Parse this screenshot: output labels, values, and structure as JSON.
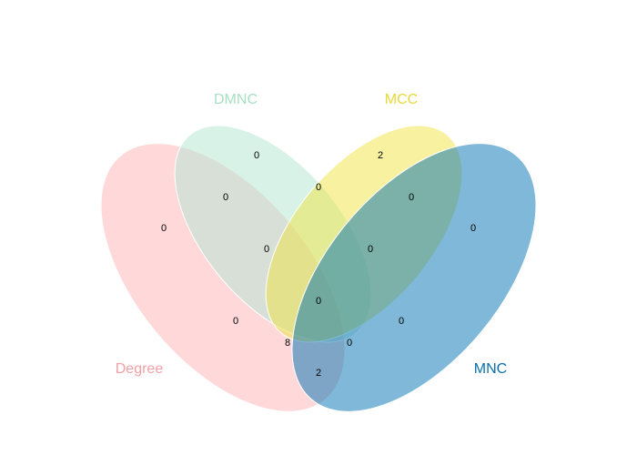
{
  "sets": [
    {
      "id": "degree",
      "label": "Degree",
      "fill": "#ffb3b5",
      "label_color": "#f4a0a6"
    },
    {
      "id": "dmnc",
      "label": "DMNC",
      "fill": "#b1e6d1",
      "label_color": "#a7dfc3"
    },
    {
      "id": "mcc",
      "label": "MCC",
      "fill": "#f0e442",
      "label_color": "#e8d839"
    },
    {
      "id": "mnc",
      "label": "MNC",
      "fill": "#0072b2",
      "label_color": "#0a6fad"
    }
  ],
  "regions": [
    {
      "sets": [
        "degree"
      ],
      "count": "0"
    },
    {
      "sets": [
        "dmnc"
      ],
      "count": "0"
    },
    {
      "sets": [
        "mcc"
      ],
      "count": "2"
    },
    {
      "sets": [
        "mnc"
      ],
      "count": "0"
    },
    {
      "sets": [
        "degree",
        "dmnc"
      ],
      "count": "0"
    },
    {
      "sets": [
        "dmnc",
        "mcc"
      ],
      "count": "0"
    },
    {
      "sets": [
        "mcc",
        "mnc"
      ],
      "count": "0"
    },
    {
      "sets": [
        "degree",
        "dmnc",
        "mcc"
      ],
      "count": "0"
    },
    {
      "sets": [
        "dmnc",
        "mcc",
        "mnc"
      ],
      "count": "0"
    },
    {
      "sets": [
        "degree",
        "dmnc",
        "mcc",
        "mnc"
      ],
      "count": "0"
    },
    {
      "sets": [
        "degree",
        "mcc"
      ],
      "count": "0"
    },
    {
      "sets": [
        "dmnc",
        "mnc"
      ],
      "count": "0"
    },
    {
      "sets": [
        "degree",
        "mcc",
        "mnc"
      ],
      "count": "8"
    },
    {
      "sets": [
        "degree",
        "dmnc",
        "mnc"
      ],
      "count": "0"
    },
    {
      "sets": [
        "degree",
        "mnc"
      ],
      "count": "2"
    }
  ]
}
